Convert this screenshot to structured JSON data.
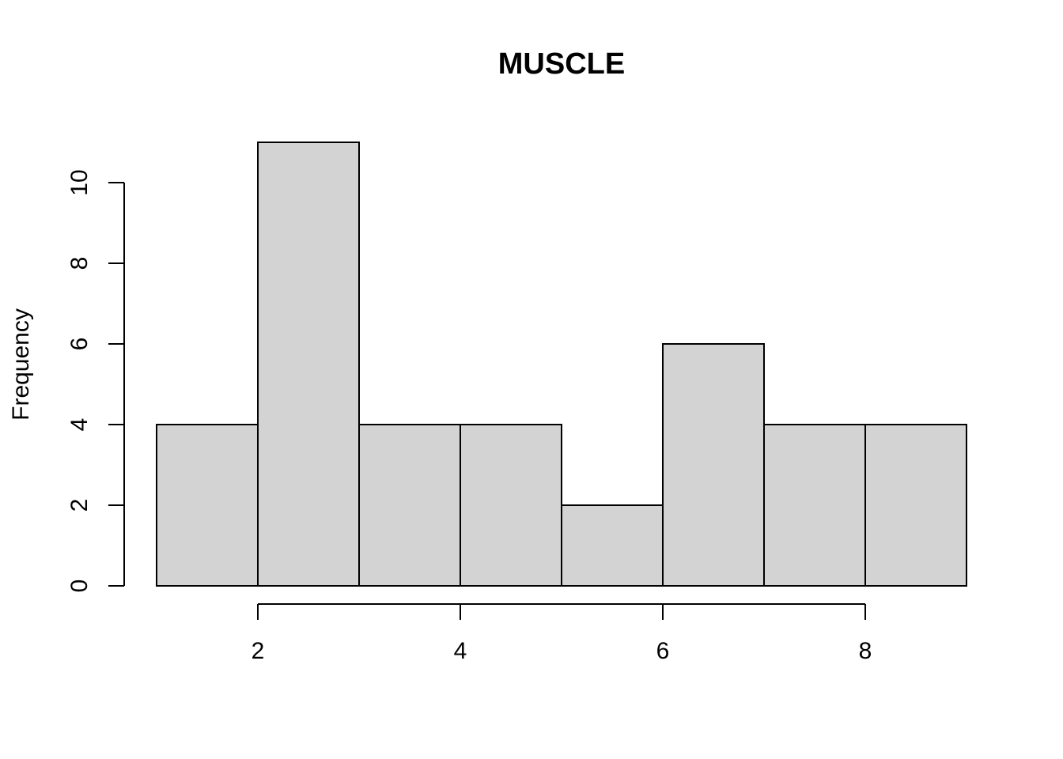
{
  "chart_data": {
    "type": "bar",
    "subtype": "histogram",
    "title": "MUSCLE",
    "xlabel": "",
    "ylabel": "Frequency",
    "bins": [
      {
        "start": 1,
        "end": 2,
        "count": 4
      },
      {
        "start": 2,
        "end": 3,
        "count": 11
      },
      {
        "start": 3,
        "end": 4,
        "count": 4
      },
      {
        "start": 4,
        "end": 5,
        "count": 4
      },
      {
        "start": 5,
        "end": 6,
        "count": 2
      },
      {
        "start": 6,
        "end": 7,
        "count": 6
      },
      {
        "start": 7,
        "end": 8,
        "count": 4
      },
      {
        "start": 8,
        "end": 9,
        "count": 4
      }
    ],
    "xticks": [
      2,
      4,
      6,
      8
    ],
    "yticks": [
      0,
      2,
      4,
      6,
      8,
      10
    ],
    "xlim": [
      1,
      9
    ],
    "ylim": [
      0,
      11
    ],
    "grid": false,
    "colors": {
      "bar_fill": "#d3d3d3",
      "bar_stroke": "#000000",
      "axis": "#000000"
    }
  }
}
